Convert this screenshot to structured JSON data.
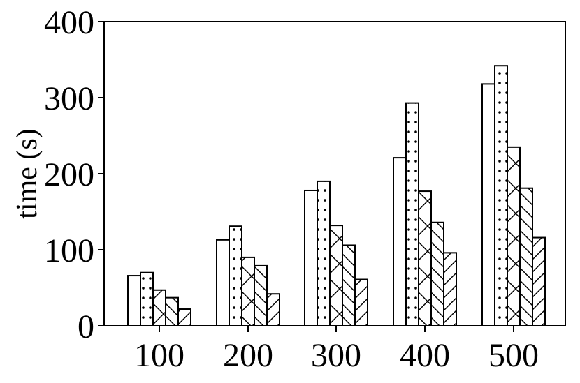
{
  "chart_data": {
    "type": "bar",
    "title": "",
    "xlabel": "",
    "ylabel": "time (s)",
    "ylim": [
      0,
      400
    ],
    "yticks": [
      "0",
      "100",
      "200",
      "300",
      "400"
    ],
    "categories": [
      "100",
      "200",
      "300",
      "400",
      "500"
    ],
    "legend": "none",
    "grid": false,
    "series": [
      {
        "pattern": "none",
        "values": [
          66,
          113,
          178,
          221,
          318
        ]
      },
      {
        "pattern": "dots",
        "values": [
          70,
          131,
          190,
          293,
          342
        ]
      },
      {
        "pattern": "crosshatch-x",
        "values": [
          47,
          90,
          132,
          177,
          235
        ]
      },
      {
        "pattern": "backslash-hatch",
        "values": [
          37,
          79,
          106,
          136,
          181
        ]
      },
      {
        "pattern": "slash-hatch",
        "values": [
          22,
          42,
          61,
          96,
          116
        ]
      }
    ],
    "colors": {
      "bar_fill": "#ffffff",
      "bar_edge": "#000000",
      "axis": "#000000"
    }
  }
}
